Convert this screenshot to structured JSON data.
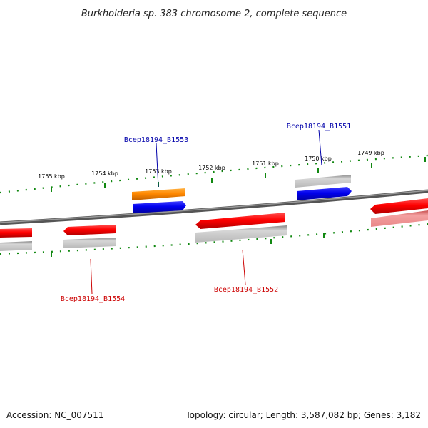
{
  "title": "Burkholderia sp. 383 chromosome 2, complete sequence",
  "footer": {
    "accession": "Accession: NC_007511",
    "topology": "Topology: circular; Length: 3,587,082 bp; Genes: 3,182"
  },
  "tick_labels": [
    "1755 kbp",
    "1754 kbp",
    "1753 kbp",
    "1752 kbp",
    "1751 kbp",
    "1750 kbp",
    "1749 kbp"
  ],
  "gene_labels": [
    {
      "text": "Bcep18194_B1553",
      "color": "#0000aa"
    },
    {
      "text": "Bcep18194_B1551",
      "color": "#0000aa"
    },
    {
      "text": "Bcep18194_B1554",
      "color": "#cc0000"
    },
    {
      "text": "Bcep18194_B1552",
      "color": "#cc0000"
    }
  ],
  "colors": {
    "backbone": "#7a7a7a",
    "tick": "#118811",
    "forward_gene": "#0000ee",
    "reverse_gene": "#ee0000",
    "highlight_gene": "#ff8800",
    "cds_shadow": "#a8a8a8"
  }
}
